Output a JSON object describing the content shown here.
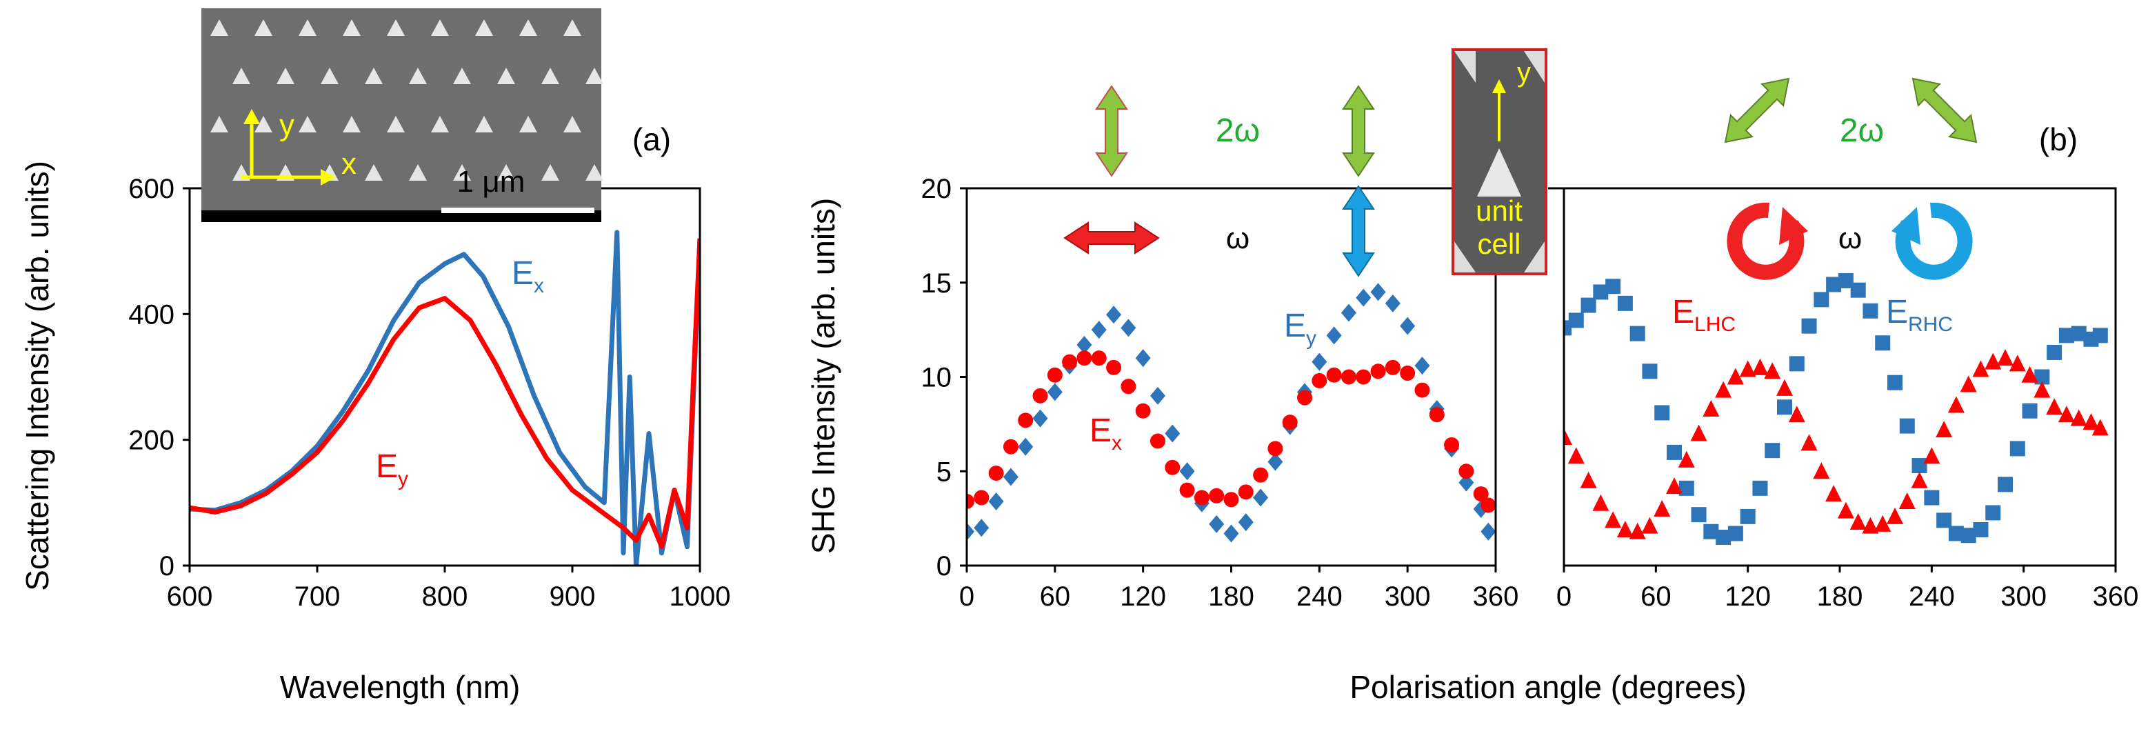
{
  "colors": {
    "blue": "#2d74b8",
    "red": "#ff0000",
    "green": "#22aa33",
    "arrow_green": "#8cc63f",
    "arrow_red": "#ee2222",
    "arrow_blue": "#1ba1e2",
    "yellow": "#ffff00",
    "frame_red": "#cc2222"
  },
  "panel_a": {
    "label": "(a)",
    "inset_scale": "1 μm",
    "inset_axis_x": "x",
    "inset_axis_y": "y"
  },
  "panel_b": {
    "label": "(b)",
    "two_omega_left": "2ω",
    "two_omega_right": "2ω",
    "omega_left": "ω",
    "omega_right": "ω",
    "inset_axis_y": "y",
    "inset_text_1": "unit",
    "inset_text_2": "cell",
    "shared_xlabel": "Polarisation angle (degrees)"
  },
  "chart_data": [
    {
      "type": "line",
      "title": "",
      "xlabel": "Wavelength (nm)",
      "ylabel": "Scattering  Intensity (arb. units)",
      "xlim": [
        600,
        1000
      ],
      "ylim": [
        0,
        600
      ],
      "xticks": [
        600,
        700,
        800,
        900,
        1000
      ],
      "yticks": [
        0,
        200,
        400,
        600
      ],
      "series": [
        {
          "name": "Ex",
          "name_main": "E",
          "name_sub": "x",
          "color": "#2d74b8",
          "x": [
            600,
            620,
            640,
            660,
            680,
            700,
            720,
            740,
            760,
            780,
            800,
            815,
            830,
            850,
            870,
            890,
            910,
            925,
            935,
            940,
            945,
            950,
            960,
            970,
            980,
            990,
            1000
          ],
          "y": [
            90,
            88,
            100,
            120,
            150,
            190,
            245,
            310,
            390,
            450,
            480,
            495,
            460,
            380,
            270,
            180,
            125,
            100,
            530,
            20,
            300,
            0,
            210,
            20,
            120,
            30,
            520
          ]
        },
        {
          "name": "Ey",
          "name_main": "E",
          "name_sub": "y",
          "color": "#ff0000",
          "x": [
            600,
            620,
            640,
            660,
            680,
            700,
            720,
            740,
            760,
            780,
            800,
            820,
            840,
            860,
            880,
            900,
            920,
            940,
            950,
            960,
            970,
            980,
            990,
            995,
            1000
          ],
          "y": [
            92,
            85,
            95,
            115,
            145,
            180,
            230,
            290,
            360,
            410,
            425,
            390,
            320,
            240,
            170,
            120,
            90,
            60,
            40,
            80,
            30,
            120,
            60,
            300,
            520
          ]
        }
      ]
    },
    {
      "type": "scatter",
      "title": "",
      "xlabel": "",
      "ylabel": "SHG Intensity (arb. units)",
      "xlim": [
        0,
        360
      ],
      "ylim": [
        0,
        20
      ],
      "xticks": [
        0,
        60,
        120,
        180,
        240,
        300,
        360
      ],
      "yticks": [
        0,
        5,
        10,
        15,
        20
      ],
      "series": [
        {
          "name": "Ey",
          "name_main": "E",
          "name_sub": "y",
          "color": "#2d74b8",
          "marker": "diamond",
          "x": [
            0,
            10,
            20,
            30,
            40,
            50,
            60,
            70,
            80,
            90,
            100,
            110,
            120,
            130,
            140,
            150,
            160,
            170,
            180,
            190,
            200,
            210,
            220,
            230,
            240,
            250,
            260,
            270,
            280,
            290,
            300,
            310,
            320,
            330,
            340,
            350,
            355
          ],
          "y": [
            1.8,
            2.0,
            3.4,
            4.7,
            6.3,
            7.8,
            9.2,
            10.6,
            11.7,
            12.5,
            13.3,
            12.6,
            11.0,
            9.0,
            7.0,
            5.0,
            3.3,
            2.2,
            1.7,
            2.3,
            3.6,
            5.5,
            7.4,
            9.2,
            10.8,
            12.2,
            13.4,
            14.2,
            14.5,
            13.9,
            12.7,
            10.6,
            8.3,
            6.2,
            4.4,
            3.0,
            1.8
          ]
        },
        {
          "name": "Ex",
          "name_main": "E",
          "name_sub": "x",
          "color": "#ff0000",
          "marker": "circle",
          "x": [
            0,
            10,
            20,
            30,
            40,
            50,
            60,
            70,
            80,
            90,
            100,
            110,
            120,
            130,
            140,
            150,
            160,
            170,
            180,
            190,
            200,
            210,
            220,
            230,
            240,
            250,
            260,
            270,
            280,
            290,
            300,
            310,
            320,
            330,
            340,
            350,
            355
          ],
          "y": [
            3.4,
            3.6,
            4.9,
            6.3,
            7.7,
            9.0,
            10.1,
            10.8,
            11.0,
            11.0,
            10.5,
            9.5,
            8.2,
            6.6,
            5.2,
            4.0,
            3.6,
            3.7,
            3.5,
            3.9,
            4.8,
            6.2,
            7.6,
            8.9,
            9.8,
            10.1,
            10.0,
            10.0,
            10.3,
            10.5,
            10.2,
            9.3,
            8.0,
            6.4,
            5.0,
            3.8,
            3.2
          ]
        }
      ]
    },
    {
      "type": "scatter",
      "title": "",
      "xlabel": "",
      "ylabel": "",
      "xlim": [
        0,
        360
      ],
      "ylim": [
        0,
        20
      ],
      "xticks": [
        0,
        60,
        120,
        180,
        240,
        300,
        360
      ],
      "yticks": [],
      "series": [
        {
          "name": "ERHC",
          "name_main": "E",
          "name_sub": "RHC",
          "color": "#2d74b8",
          "marker": "square",
          "x": [
            0,
            8,
            16,
            24,
            32,
            40,
            48,
            56,
            64,
            72,
            80,
            88,
            96,
            104,
            112,
            120,
            128,
            136,
            144,
            152,
            160,
            168,
            176,
            184,
            192,
            200,
            208,
            216,
            224,
            232,
            240,
            248,
            256,
            264,
            272,
            280,
            288,
            296,
            304,
            312,
            320,
            328,
            336,
            344,
            350
          ],
          "y": [
            12.6,
            13.0,
            13.8,
            14.5,
            14.8,
            13.9,
            12.3,
            10.3,
            8.1,
            6.0,
            4.1,
            2.7,
            1.8,
            1.5,
            1.7,
            2.6,
            4.1,
            6.1,
            8.4,
            10.7,
            12.7,
            14.1,
            14.9,
            15.1,
            14.6,
            13.5,
            11.8,
            9.7,
            7.4,
            5.3,
            3.6,
            2.4,
            1.7,
            1.6,
            1.9,
            2.8,
            4.3,
            6.2,
            8.2,
            10.0,
            11.3,
            12.2,
            12.3,
            12.0,
            12.2
          ]
        },
        {
          "name": "ELHC",
          "name_main": "E",
          "name_sub": "LHC",
          "color": "#ff0000",
          "marker": "triangle",
          "x": [
            0,
            8,
            16,
            24,
            32,
            40,
            48,
            56,
            64,
            72,
            80,
            88,
            96,
            104,
            112,
            120,
            128,
            136,
            144,
            152,
            160,
            168,
            176,
            184,
            192,
            200,
            208,
            216,
            224,
            232,
            240,
            248,
            256,
            264,
            272,
            280,
            288,
            296,
            304,
            312,
            320,
            328,
            336,
            344,
            350
          ],
          "y": [
            6.8,
            5.8,
            4.5,
            3.3,
            2.4,
            1.9,
            1.8,
            2.1,
            3.0,
            4.2,
            5.6,
            7.0,
            8.3,
            9.3,
            10.0,
            10.4,
            10.5,
            10.3,
            9.4,
            8.0,
            6.5,
            5.0,
            3.8,
            2.9,
            2.3,
            2.1,
            2.2,
            2.6,
            3.4,
            4.5,
            5.8,
            7.2,
            8.5,
            9.6,
            10.4,
            10.8,
            11.0,
            10.7,
            10.1,
            9.3,
            8.4,
            8.0,
            7.8,
            7.6,
            7.3
          ]
        }
      ]
    }
  ]
}
